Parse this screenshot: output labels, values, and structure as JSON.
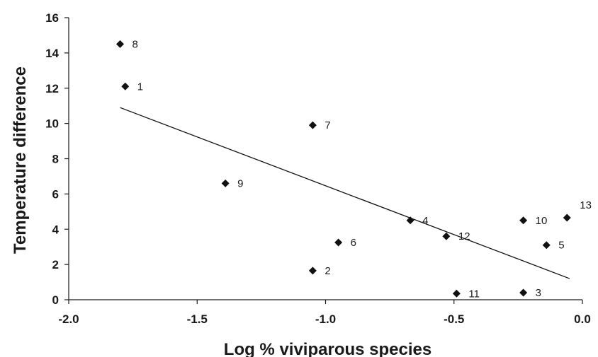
{
  "chart_data": {
    "type": "scatter",
    "title": "",
    "xlabel": "Log % viviparous species",
    "ylabel": "Temperature difference",
    "xlim": [
      -2.0,
      0.0
    ],
    "ylim": [
      0,
      16
    ],
    "x_ticks": [
      -2.0,
      -1.5,
      -1.0,
      -0.5,
      0.0
    ],
    "x_tick_labels": [
      "-2.0",
      "-1.5",
      "-1.0",
      "-0.5",
      "0.0"
    ],
    "y_ticks": [
      0,
      2,
      4,
      6,
      8,
      10,
      12,
      14,
      16
    ],
    "y_tick_labels": [
      "0",
      "2",
      "4",
      "6",
      "8",
      "10",
      "12",
      "14",
      "16"
    ],
    "grid": false,
    "marker": "diamond",
    "points": [
      {
        "label": "1",
        "x": -1.78,
        "y": 12.1
      },
      {
        "label": "2",
        "x": -1.05,
        "y": 1.65
      },
      {
        "label": "3",
        "x": -0.23,
        "y": 0.4
      },
      {
        "label": "4",
        "x": -0.67,
        "y": 4.5
      },
      {
        "label": "5",
        "x": -0.14,
        "y": 3.1
      },
      {
        "label": "6",
        "x": -0.95,
        "y": 3.25
      },
      {
        "label": "7",
        "x": -1.05,
        "y": 9.9
      },
      {
        "label": "8",
        "x": -1.8,
        "y": 14.5
      },
      {
        "label": "9",
        "x": -1.39,
        "y": 6.6
      },
      {
        "label": "10",
        "x": -0.23,
        "y": 4.5
      },
      {
        "label": "11",
        "x": -0.49,
        "y": 0.35
      },
      {
        "label": "12",
        "x": -0.53,
        "y": 3.6
      },
      {
        "label": "13",
        "x": -0.06,
        "y": 4.65
      }
    ],
    "trendline": {
      "x": [
        -1.8,
        -0.05
      ],
      "y": [
        10.9,
        1.2
      ]
    }
  }
}
